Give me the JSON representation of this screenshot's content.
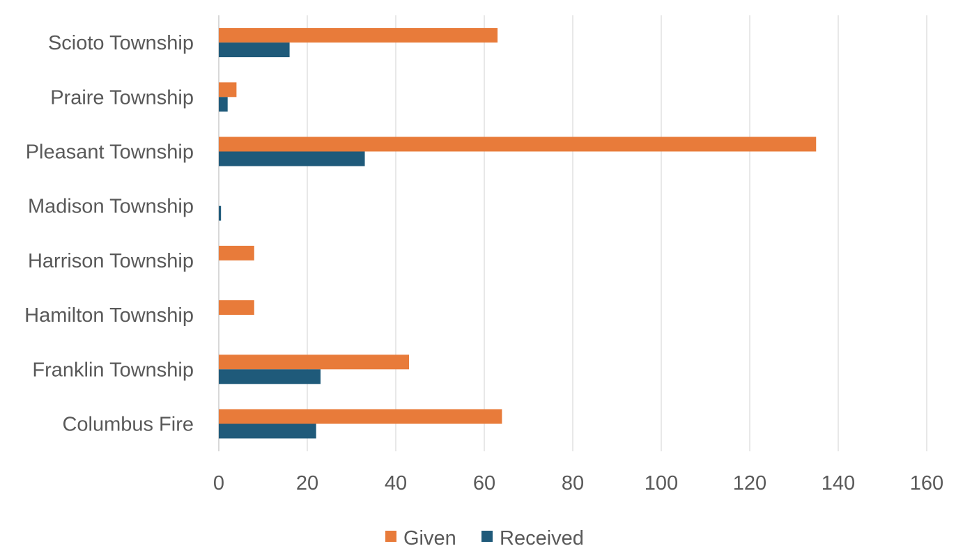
{
  "chart_data": {
    "type": "bar",
    "orientation": "horizontal",
    "categories": [
      "Scioto Township",
      "Praire Township",
      "Pleasant Township",
      "Madison Township",
      "Harrison Township",
      "Hamilton Township",
      "Franklin Township",
      "Columbus Fire"
    ],
    "series": [
      {
        "name": "Given",
        "color": "#E87B3A",
        "values": [
          63,
          4,
          135,
          0,
          8,
          8,
          43,
          64
        ]
      },
      {
        "name": "Received",
        "color": "#1F5A7A",
        "values": [
          16,
          2,
          33,
          0.5,
          0,
          0,
          23,
          22
        ]
      }
    ],
    "xlim": [
      0,
      160
    ],
    "xticks": [
      0,
      20,
      40,
      60,
      80,
      100,
      120,
      140,
      160
    ],
    "grid": true,
    "legend_position": "bottom",
    "title": "",
    "xlabel": "",
    "ylabel": ""
  }
}
